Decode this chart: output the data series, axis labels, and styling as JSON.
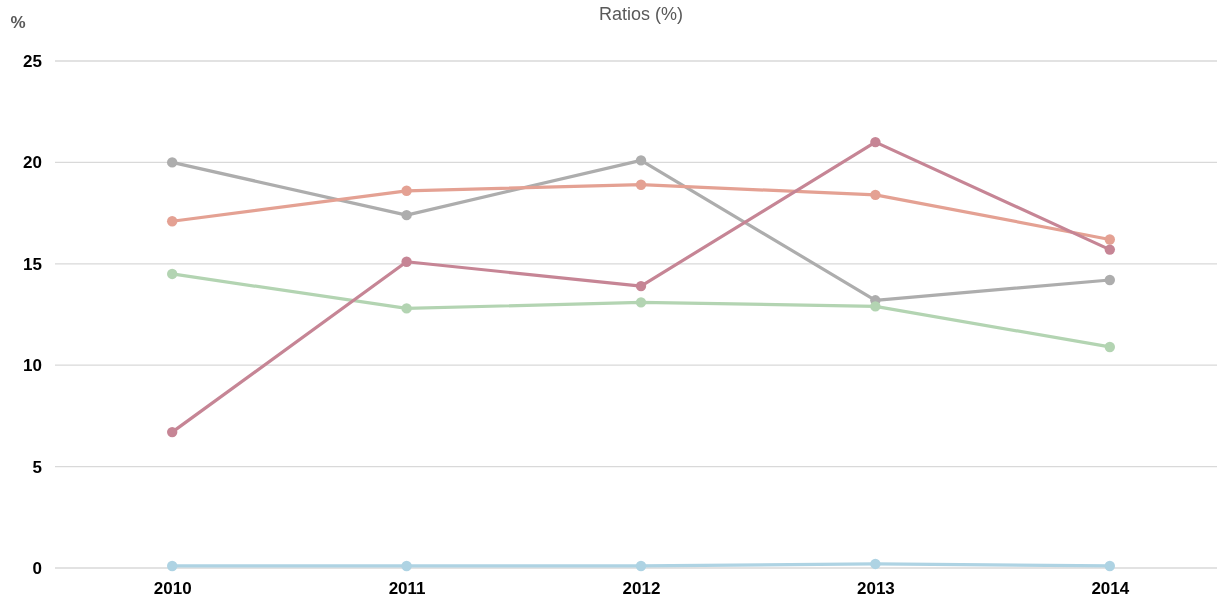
{
  "chart_data": {
    "type": "line",
    "title": "Ratios (%)",
    "ylabel": "%",
    "categories": [
      "2010",
      "2011",
      "2012",
      "2013",
      "2014"
    ],
    "series": [
      {
        "color": "#adadad",
        "values": [
          20.0,
          17.4,
          20.1,
          13.2,
          14.2
        ]
      },
      {
        "color": "#e4a193",
        "values": [
          17.1,
          18.6,
          18.9,
          18.4,
          16.2
        ]
      },
      {
        "color": "#b3d4b2",
        "values": [
          14.5,
          12.8,
          13.1,
          12.9,
          10.9
        ]
      },
      {
        "color": "#c68595",
        "values": [
          6.7,
          15.1,
          13.9,
          21.0,
          15.7
        ]
      },
      {
        "color": "#aed3e3",
        "values": [
          0.1,
          0.1,
          0.1,
          0.2,
          0.1
        ]
      }
    ],
    "ylim": [
      0,
      25
    ],
    "yticks": [
      0,
      5,
      10,
      15,
      20,
      25
    ],
    "grid": "y",
    "marker": "circle",
    "line_style": "solid"
  }
}
